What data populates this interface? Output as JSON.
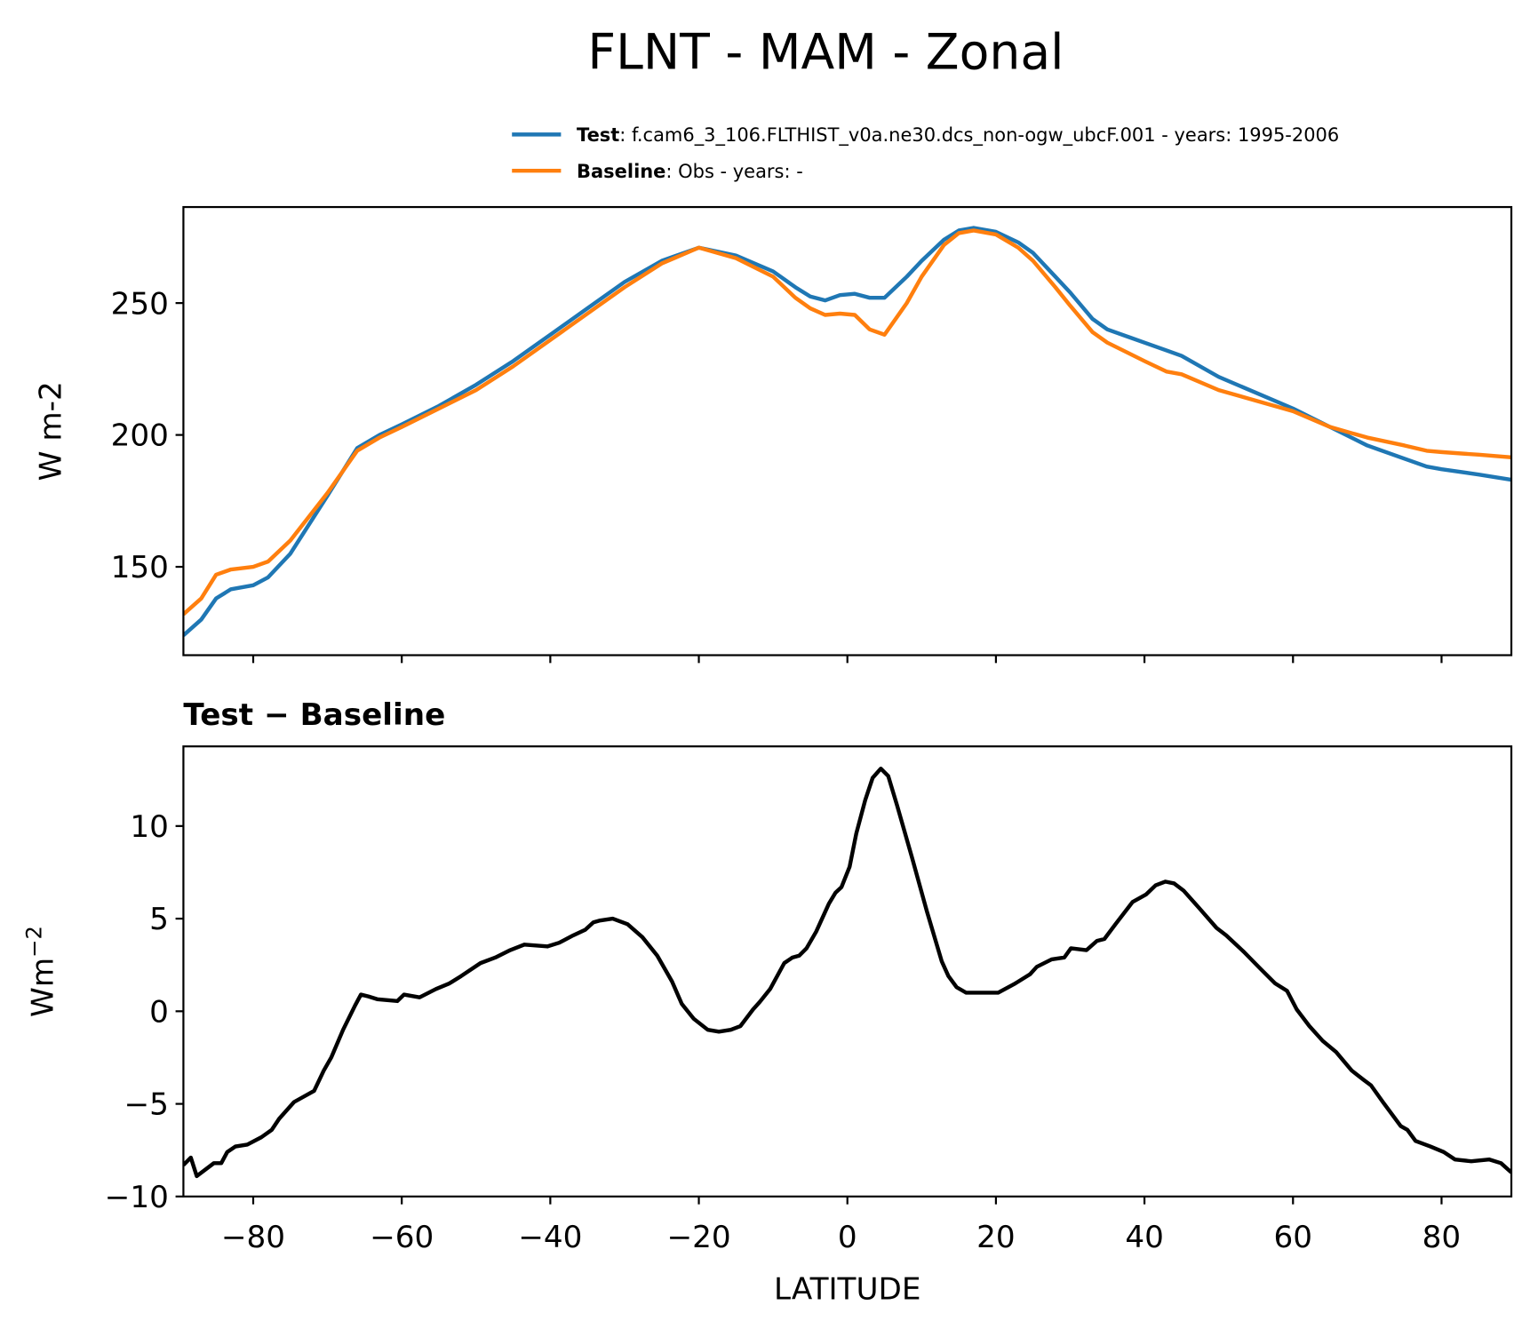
{
  "figure_title": "FLNT - MAM - Zonal",
  "chart_data": [
    {
      "type": "line",
      "ylabel": "W m-2",
      "legend": "above",
      "show_xtick_labels": false,
      "x": [
        -89.4,
        -87,
        -85,
        -83,
        -80,
        -78,
        -75,
        -70,
        -66,
        -63,
        -60,
        -55,
        -50,
        -45,
        -40,
        -35,
        -30,
        -25,
        -20,
        -15,
        -10,
        -7,
        -5,
        -3,
        -1,
        1,
        3,
        5,
        8,
        10,
        13,
        15,
        17,
        20,
        23,
        25,
        28,
        30,
        33,
        35,
        40,
        43,
        45,
        50,
        55,
        60,
        65,
        70,
        75,
        78,
        80,
        85,
        89.4
      ],
      "series": [
        {
          "name": "Test",
          "description": ": f.cam6_3_106.FLTHIST_v0a.ne30.dcs_non-ogw_ubcF.001 - years: 1995-2006",
          "color": "#1f77b4",
          "values": [
            124,
            130,
            138,
            141.5,
            143,
            146,
            155,
            177,
            195,
            200,
            204,
            211,
            219,
            228,
            238,
            248,
            258,
            266,
            271,
            268,
            262,
            256,
            252.5,
            251,
            253,
            253.5,
            252,
            252,
            260,
            266,
            274,
            277.5,
            278.5,
            277,
            273,
            269,
            260,
            254,
            244,
            240,
            235,
            232,
            230,
            222,
            216,
            210,
            203,
            196,
            191,
            188,
            187,
            185,
            183
          ]
        },
        {
          "name": "Baseline",
          "description": ": Obs - years: -",
          "color": "#ff7f0e",
          "values": [
            132,
            138,
            147,
            149,
            150,
            152,
            160,
            178,
            194,
            199,
            203,
            210,
            217,
            226,
            236,
            246,
            256,
            265,
            271,
            267,
            260,
            252,
            248,
            245.5,
            246,
            245.5,
            240,
            238,
            250,
            260,
            272,
            276.5,
            277.5,
            276,
            271,
            266,
            256,
            249,
            239,
            235,
            228,
            224,
            223,
            217,
            213,
            209,
            203,
            199,
            196,
            194,
            193.5,
            192.5,
            191.5
          ]
        }
      ],
      "xlim": [
        -89.4,
        89.4
      ],
      "xticks": [
        -80,
        -60,
        -40,
        -20,
        0,
        20,
        40,
        60,
        80
      ],
      "ylim": [
        116.5,
        286.4
      ],
      "yticks": [
        150,
        200,
        250
      ]
    },
    {
      "type": "line",
      "title": "Test − Baseline",
      "ylabel": "Wm",
      "ylabel_superscript": "−2",
      "xlabel": "LATITUDE",
      "x": [
        -89.4,
        -88.4,
        -87.6,
        -85.3,
        -84.3,
        -83.5,
        -82.4,
        -80.8,
        -78.9,
        -77.5,
        -76.5,
        -74.5,
        -71.8,
        -70.5,
        -69.5,
        -67.9,
        -66.3,
        -65.5,
        -64.5,
        -63.3,
        -60.6,
        -59.7,
        -57.6,
        -55.4,
        -53.6,
        -52.0,
        -49.4,
        -47.4,
        -45.4,
        -43.5,
        -40.4,
        -38.8,
        -36.9,
        -35.3,
        -34.2,
        -33.3,
        -31.6,
        -29.6,
        -27.6,
        -25.6,
        -23.6,
        -22.3,
        -20.7,
        -18.8,
        -17.3,
        -15.7,
        -14.4,
        -12.7,
        -11.8,
        -10.4,
        -8.5,
        -7.4,
        -6.5,
        -5.5,
        -4.2,
        -2.5,
        -1.6,
        -0.8,
        0.3,
        1.2,
        2.4,
        3.4,
        4.5,
        5.5,
        6.7,
        8.7,
        10.7,
        12.7,
        13.6,
        14.7,
        16.0,
        17.3,
        20.3,
        22.6,
        24.6,
        25.5,
        27.5,
        29.2,
        30.1,
        32.2,
        33.6,
        34.6,
        36.1,
        38.4,
        40.2,
        41.5,
        42.8,
        44.0,
        45.3,
        47.3,
        49.7,
        51.0,
        53.4,
        55.6,
        57.6,
        59.2,
        60.5,
        62.2,
        64.0,
        65.8,
        67.9,
        69.5,
        70.5,
        72.1,
        74.5,
        75.4,
        76.5,
        78.5,
        80.3,
        81.8,
        84.0,
        86.4,
        88.0,
        89.4
      ],
      "series": [
        {
          "color": "#000000",
          "values": [
            -8.3,
            -7.9,
            -8.9,
            -8.2,
            -8.2,
            -7.6,
            -7.3,
            -7.2,
            -6.8,
            -6.4,
            -5.8,
            -4.9,
            -4.3,
            -3.2,
            -2.5,
            -1.0,
            0.3,
            0.9,
            0.8,
            0.65,
            0.55,
            0.9,
            0.75,
            1.2,
            1.5,
            1.9,
            2.6,
            2.9,
            3.3,
            3.6,
            3.5,
            3.7,
            4.1,
            4.4,
            4.8,
            4.9,
            5.0,
            4.7,
            4.0,
            3.0,
            1.6,
            0.4,
            -0.4,
            -1.0,
            -1.1,
            -1.0,
            -0.8,
            0.1,
            0.5,
            1.2,
            2.6,
            2.9,
            3.0,
            3.4,
            4.3,
            5.8,
            6.4,
            6.7,
            7.8,
            9.6,
            11.4,
            12.6,
            13.1,
            12.7,
            11.1,
            8.3,
            5.4,
            2.7,
            1.9,
            1.3,
            1.0,
            1.0,
            1.0,
            1.5,
            2.0,
            2.4,
            2.8,
            2.9,
            3.4,
            3.3,
            3.8,
            3.9,
            4.7,
            5.9,
            6.3,
            6.8,
            7.0,
            6.9,
            6.5,
            5.6,
            4.5,
            4.1,
            3.2,
            2.3,
            1.5,
            1.1,
            0.1,
            -0.8,
            -1.6,
            -2.2,
            -3.2,
            -3.7,
            -4.0,
            -4.9,
            -6.2,
            -6.4,
            -7.0,
            -7.3,
            -7.6,
            -8.0,
            -8.1,
            -8.0,
            -8.2,
            -8.7
          ]
        }
      ],
      "xlim": [
        -89.4,
        89.4
      ],
      "xticks": [
        {
          "value": -80,
          "label": "−80"
        },
        {
          "value": -60,
          "label": "−60"
        },
        {
          "value": -40,
          "label": "−40"
        },
        {
          "value": -20,
          "label": "−20"
        },
        0,
        20,
        40,
        60,
        80
      ],
      "ylim": [
        -10,
        14.3
      ],
      "yticks": [
        {
          "value": -10,
          "label": "−10"
        },
        {
          "value": -5,
          "label": "−5"
        },
        0,
        5,
        10
      ]
    }
  ]
}
